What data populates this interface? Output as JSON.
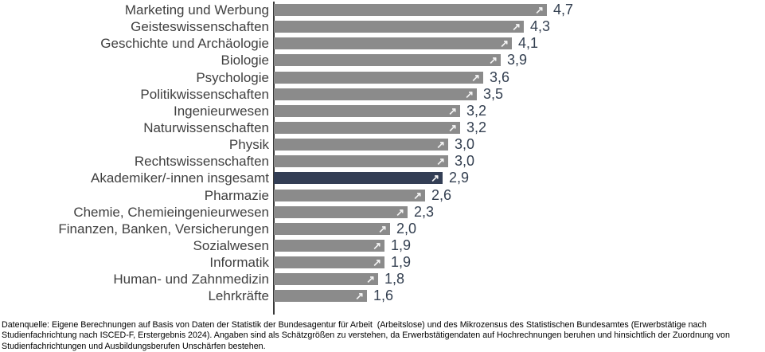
{
  "chart_data": {
    "type": "bar",
    "orientation": "horizontal",
    "title": "",
    "xlabel": "",
    "ylabel": "",
    "xlim": [
      0,
      4.7
    ],
    "grid": false,
    "legend": false,
    "categories": [
      "Marketing und Werbung",
      "Geisteswissenschaften",
      "Geschichte und Archäologie",
      "Biologie",
      "Psychologie",
      "Politikwissenschaften",
      "Ingenieurwesen",
      "Naturwissenschaften",
      "Physik",
      "Rechtswissenschaften",
      "Akademiker/-innen insgesamt",
      "Pharmazie",
      "Chemie, Chemieingenieurwesen",
      "Finanzen, Banken, Versicherungen",
      "Sozialwesen",
      "Informatik",
      "Human- und Zahnmedizin",
      "Lehrkräfte"
    ],
    "values": [
      4.7,
      4.3,
      4.1,
      3.9,
      3.6,
      3.5,
      3.2,
      3.2,
      3.0,
      3.0,
      2.9,
      2.6,
      2.3,
      2.0,
      1.9,
      1.9,
      1.8,
      1.6
    ],
    "value_labels": [
      "4,7",
      "4,3",
      "4,1",
      "3,9",
      "3,6",
      "3,5",
      "3,2",
      "3,2",
      "3,0",
      "3,0",
      "2,9",
      "2,6",
      "2,3",
      "2,0",
      "1,9",
      "1,9",
      "1,8",
      "1,6"
    ],
    "highlight_index": 10,
    "highlight_category": "Akademiker/-innen insgesamt",
    "bar_color": "#8b8b8b",
    "highlight_color": "#333e55",
    "value_color": "#333f50",
    "label_color": "#404040",
    "arrow_icon": "↗"
  },
  "footer": {
    "lines": [
      "Datenquelle: Eigene Berechnungen auf Basis von Daten der Statistik der Bundesagentur für Arbeit  (Arbeitslose) und des Mikrozensus des Statistischen Bundesamtes (Erwerbstätige nach",
      "Studienfachrichtung nach ISCED-F, Erstergebnis 2024). Angaben sind als Schätzgrößen zu verstehen, da Erwerbstätigendaten auf Hochrechnungen beruhen und hinsichtlich der Zuordnung von",
      "Studienfachrichtungen und Ausbildungsberufen Unschärfen bestehen."
    ]
  }
}
